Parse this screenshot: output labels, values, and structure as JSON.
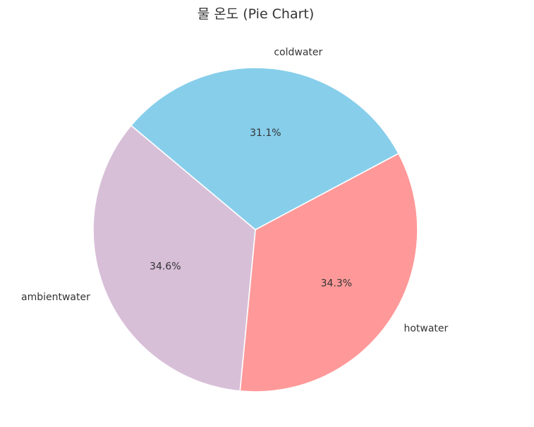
{
  "chart_data": {
    "type": "pie",
    "title": "물 온도 (Pie Chart)",
    "slices": [
      {
        "label": "coldwater",
        "value": 31.1,
        "pct_label": "31.1%",
        "color": "#87CEEB"
      },
      {
        "label": "hotwater",
        "value": 34.3,
        "pct_label": "34.3%",
        "color": "#FF9999"
      },
      {
        "label": "ambientwater",
        "value": 34.6,
        "pct_label": "34.6%",
        "color": "#D8BFD8"
      }
    ],
    "start_angle_deg": 140,
    "direction": "clockwise",
    "wedge_edge_color": "#ffffff",
    "legend": "none"
  }
}
